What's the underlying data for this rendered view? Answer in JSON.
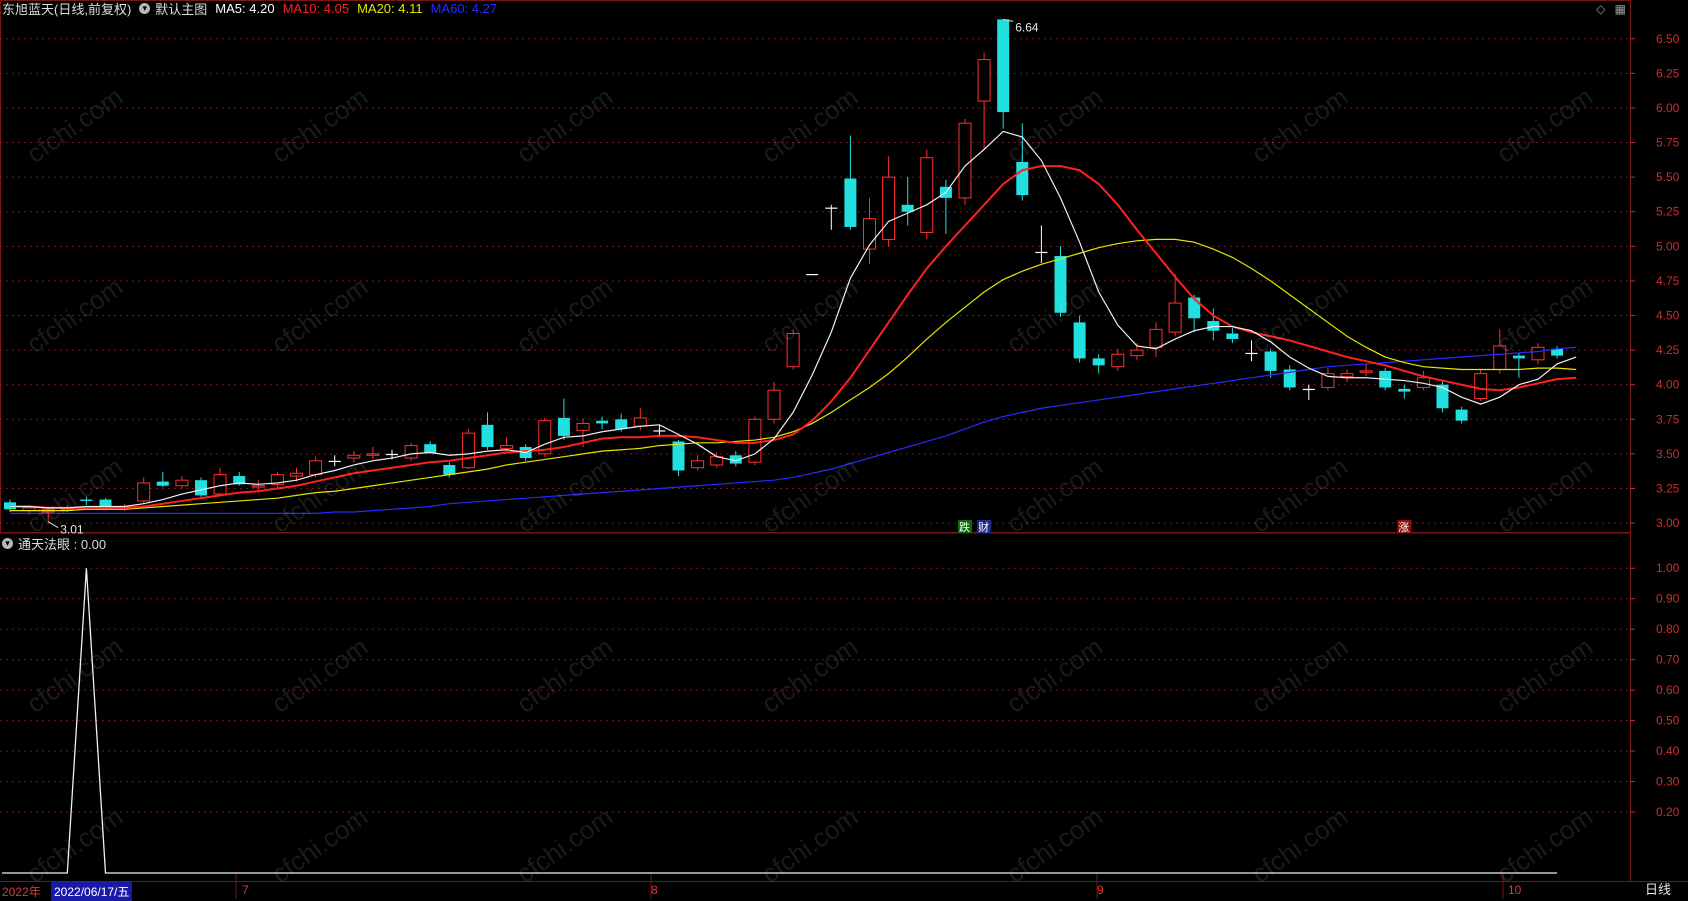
{
  "header": {
    "stock_title": "东旭蓝天(日线,前复权)",
    "template_label": "默认主图",
    "ma": [
      {
        "label": "MA5: 4.20",
        "color": "#ffffff"
      },
      {
        "label": "MA10: 4.05",
        "color": "#ff2020"
      },
      {
        "label": "MA20: 4.11",
        "color": "#e6e600"
      },
      {
        "label": "MA60: 4.27",
        "color": "#2a2aff"
      }
    ]
  },
  "icons": {
    "diamond": "diamond-icon",
    "grid": "grid-icon"
  },
  "indicator": {
    "label": "通天法眼 : 0.00"
  },
  "price_axis_labels": [
    "6.50",
    "6.25",
    "6.00",
    "5.75",
    "5.50",
    "5.25",
    "5.00",
    "4.75",
    "4.50",
    "4.25",
    "4.00",
    "3.75",
    "3.50",
    "3.25",
    "3.00"
  ],
  "indicator_axis_labels": [
    "1.00",
    "0.90",
    "0.80",
    "0.70",
    "0.60",
    "0.50",
    "0.40",
    "0.30",
    "0.20"
  ],
  "annotations": {
    "high": "6.64",
    "low": "3.01",
    "mark_die": "跌",
    "mark_cai": "财",
    "mark_zhang": "涨"
  },
  "date_bar": {
    "year": "2022年",
    "cursor_date": "2022/06/17/五",
    "months": [
      "7",
      "8",
      "9",
      "10"
    ]
  },
  "period_button": "日线",
  "watermark": "cfchi.com",
  "colors": {
    "up": "#ff3030",
    "down": "#20e0e0",
    "grid": "#7a1515",
    "axis_text": "#c83030"
  },
  "chart_data": {
    "type": "candlestick",
    "ylim": [
      2.95,
      6.65
    ],
    "indicator_ylim": [
      0,
      1.05
    ],
    "candles": [
      {
        "o": 3.15,
        "c": 3.1,
        "h": 3.17,
        "l": 3.08
      },
      {
        "o": 3.09,
        "c": 3.11,
        "h": 3.13,
        "l": 3.06
      },
      {
        "o": 3.08,
        "c": 3.1,
        "h": 3.12,
        "l": 3.01
      },
      {
        "o": 3.1,
        "c": 3.11,
        "h": 3.13,
        "l": 3.08
      },
      {
        "o": 3.17,
        "c": 3.16,
        "h": 3.19,
        "l": 3.13
      },
      {
        "o": 3.17,
        "c": 3.11,
        "h": 3.18,
        "l": 3.1
      },
      {
        "o": 3.11,
        "c": 3.12,
        "h": 3.14,
        "l": 3.09
      },
      {
        "o": 3.16,
        "c": 3.29,
        "h": 3.33,
        "l": 3.14
      },
      {
        "o": 3.3,
        "c": 3.27,
        "h": 3.37,
        "l": 3.26
      },
      {
        "o": 3.27,
        "c": 3.31,
        "h": 3.34,
        "l": 3.25
      },
      {
        "o": 3.31,
        "c": 3.2,
        "h": 3.33,
        "l": 3.19
      },
      {
        "o": 3.21,
        "c": 3.35,
        "h": 3.4,
        "l": 3.2
      },
      {
        "o": 3.34,
        "c": 3.28,
        "h": 3.37,
        "l": 3.27
      },
      {
        "o": 3.26,
        "c": 3.27,
        "h": 3.31,
        "l": 3.22
      },
      {
        "o": 3.28,
        "c": 3.35,
        "h": 3.37,
        "l": 3.25
      },
      {
        "o": 3.34,
        "c": 3.36,
        "h": 3.4,
        "l": 3.3
      },
      {
        "o": 3.35,
        "c": 3.45,
        "h": 3.48,
        "l": 3.33
      },
      {
        "o": 3.45,
        "c": 3.45,
        "h": 3.49,
        "l": 3.41
      },
      {
        "o": 3.47,
        "c": 3.49,
        "h": 3.52,
        "l": 3.44
      },
      {
        "o": 3.49,
        "c": 3.5,
        "h": 3.55,
        "l": 3.46
      },
      {
        "o": 3.5,
        "c": 3.5,
        "h": 3.53,
        "l": 3.46
      },
      {
        "o": 3.47,
        "c": 3.56,
        "h": 3.58,
        "l": 3.45
      },
      {
        "o": 3.57,
        "c": 3.51,
        "h": 3.59,
        "l": 3.5
      },
      {
        "o": 3.42,
        "c": 3.35,
        "h": 3.44,
        "l": 3.33
      },
      {
        "o": 3.4,
        "c": 3.65,
        "h": 3.68,
        "l": 3.39
      },
      {
        "o": 3.71,
        "c": 3.55,
        "h": 3.8,
        "l": 3.53
      },
      {
        "o": 3.54,
        "c": 3.56,
        "h": 3.62,
        "l": 3.52
      },
      {
        "o": 3.55,
        "c": 3.47,
        "h": 3.57,
        "l": 3.45
      },
      {
        "o": 3.5,
        "c": 3.74,
        "h": 3.76,
        "l": 3.48
      },
      {
        "o": 3.76,
        "c": 3.63,
        "h": 3.9,
        "l": 3.6
      },
      {
        "o": 3.67,
        "c": 3.72,
        "h": 3.75,
        "l": 3.55
      },
      {
        "o": 3.74,
        "c": 3.72,
        "h": 3.77,
        "l": 3.68
      },
      {
        "o": 3.75,
        "c": 3.68,
        "h": 3.79,
        "l": 3.66
      },
      {
        "o": 3.7,
        "c": 3.76,
        "h": 3.83,
        "l": 3.67
      },
      {
        "o": 3.67,
        "c": 3.67,
        "h": 3.71,
        "l": 3.62
      },
      {
        "o": 3.59,
        "c": 3.38,
        "h": 3.6,
        "l": 3.34
      },
      {
        "o": 3.4,
        "c": 3.45,
        "h": 3.49,
        "l": 3.38
      },
      {
        "o": 3.42,
        "c": 3.48,
        "h": 3.51,
        "l": 3.4
      },
      {
        "o": 3.49,
        "c": 3.43,
        "h": 3.52,
        "l": 3.41
      },
      {
        "o": 3.44,
        "c": 3.75,
        "h": 3.77,
        "l": 3.42
      },
      {
        "o": 3.75,
        "c": 3.96,
        "h": 4.02,
        "l": 3.72
      },
      {
        "o": 4.13,
        "c": 4.37,
        "h": 4.4,
        "l": 4.11
      },
      {
        "o": 4.8,
        "c": 4.8,
        "h": 4.8,
        "l": 4.8
      },
      {
        "o": 5.28,
        "c": 5.28,
        "h": 5.3,
        "l": 5.12
      },
      {
        "o": 5.49,
        "c": 5.14,
        "h": 5.8,
        "l": 5.12
      },
      {
        "o": 4.98,
        "c": 5.2,
        "h": 5.35,
        "l": 4.87
      },
      {
        "o": 5.05,
        "c": 5.5,
        "h": 5.65,
        "l": 5.0
      },
      {
        "o": 5.3,
        "c": 5.25,
        "h": 5.5,
        "l": 5.15
      },
      {
        "o": 5.1,
        "c": 5.64,
        "h": 5.7,
        "l": 5.05
      },
      {
        "o": 5.43,
        "c": 5.35,
        "h": 5.48,
        "l": 5.09
      },
      {
        "o": 5.35,
        "c": 5.89,
        "h": 5.92,
        "l": 5.3
      },
      {
        "o": 6.05,
        "c": 6.35,
        "h": 6.4,
        "l": 5.7
      },
      {
        "o": 6.64,
        "c": 5.97,
        "h": 6.64,
        "l": 5.85
      },
      {
        "o": 5.61,
        "c": 5.37,
        "h": 5.89,
        "l": 5.33
      },
      {
        "o": 4.96,
        "c": 4.96,
        "h": 5.15,
        "l": 4.88
      },
      {
        "o": 4.93,
        "c": 4.52,
        "h": 5.0,
        "l": 4.49
      },
      {
        "o": 4.45,
        "c": 4.19,
        "h": 4.5,
        "l": 4.16
      },
      {
        "o": 4.19,
        "c": 4.14,
        "h": 4.22,
        "l": 4.08
      },
      {
        "o": 4.13,
        "c": 4.22,
        "h": 4.26,
        "l": 4.1
      },
      {
        "o": 4.21,
        "c": 4.25,
        "h": 4.3,
        "l": 4.18
      },
      {
        "o": 4.27,
        "c": 4.4,
        "h": 4.45,
        "l": 4.2
      },
      {
        "o": 4.38,
        "c": 4.59,
        "h": 4.8,
        "l": 4.35
      },
      {
        "o": 4.63,
        "c": 4.48,
        "h": 4.65,
        "l": 4.38
      },
      {
        "o": 4.46,
        "c": 4.39,
        "h": 4.55,
        "l": 4.32
      },
      {
        "o": 4.37,
        "c": 4.33,
        "h": 4.41,
        "l": 4.3
      },
      {
        "o": 4.23,
        "c": 4.23,
        "h": 4.32,
        "l": 4.17
      },
      {
        "o": 4.24,
        "c": 4.1,
        "h": 4.26,
        "l": 4.05
      },
      {
        "o": 4.11,
        "c": 3.98,
        "h": 4.14,
        "l": 3.96
      },
      {
        "o": 3.97,
        "c": 3.97,
        "h": 4.0,
        "l": 3.89
      },
      {
        "o": 3.98,
        "c": 4.08,
        "h": 4.12,
        "l": 3.96
      },
      {
        "o": 4.06,
        "c": 4.08,
        "h": 4.11,
        "l": 4.02
      },
      {
        "o": 4.09,
        "c": 4.1,
        "h": 4.15,
        "l": 4.06
      },
      {
        "o": 4.1,
        "c": 3.98,
        "h": 4.12,
        "l": 3.96
      },
      {
        "o": 3.97,
        "c": 3.95,
        "h": 4.0,
        "l": 3.9
      },
      {
        "o": 3.98,
        "c": 4.05,
        "h": 4.1,
        "l": 3.96
      },
      {
        "o": 4.0,
        "c": 3.83,
        "h": 4.03,
        "l": 3.8
      },
      {
        "o": 3.82,
        "c": 3.74,
        "h": 3.84,
        "l": 3.72
      },
      {
        "o": 3.9,
        "c": 4.08,
        "h": 4.11,
        "l": 3.88
      },
      {
        "o": 4.11,
        "c": 4.28,
        "h": 4.4,
        "l": 4.08
      },
      {
        "o": 4.21,
        "c": 4.19,
        "h": 4.23,
        "l": 4.05
      },
      {
        "o": 4.18,
        "c": 4.27,
        "h": 4.3,
        "l": 4.15
      },
      {
        "o": 4.26,
        "c": 4.21,
        "h": 4.28,
        "l": 4.19
      }
    ],
    "ma5": [
      3.12,
      3.12,
      3.11,
      3.11,
      3.12,
      3.12,
      3.12,
      3.14,
      3.17,
      3.21,
      3.24,
      3.27,
      3.29,
      3.28,
      3.29,
      3.31,
      3.35,
      3.38,
      3.42,
      3.45,
      3.47,
      3.5,
      3.51,
      3.49,
      3.5,
      3.52,
      3.53,
      3.51,
      3.57,
      3.62,
      3.63,
      3.66,
      3.68,
      3.7,
      3.71,
      3.64,
      3.57,
      3.48,
      3.45,
      3.5,
      3.61,
      3.8,
      4.07,
      4.38,
      4.77,
      5.01,
      5.18,
      5.24,
      5.3,
      5.39,
      5.58,
      5.7,
      5.83,
      5.79,
      5.62,
      5.35,
      5.03,
      4.67,
      4.43,
      4.28,
      4.26,
      4.33,
      4.39,
      4.42,
      4.42,
      4.39,
      4.31,
      4.2,
      4.12,
      4.06,
      4.05,
      4.05,
      4.04,
      4.03,
      4.01,
      3.98,
      3.91,
      3.86,
      3.91,
      4.0,
      4.04,
      4.15,
      4.2
    ],
    "ma10": [
      3.12,
      3.12,
      3.11,
      3.11,
      3.11,
      3.11,
      3.11,
      3.12,
      3.14,
      3.16,
      3.18,
      3.2,
      3.22,
      3.23,
      3.25,
      3.27,
      3.3,
      3.33,
      3.36,
      3.38,
      3.4,
      3.42,
      3.44,
      3.45,
      3.47,
      3.49,
      3.51,
      3.52,
      3.53,
      3.55,
      3.58,
      3.61,
      3.62,
      3.62,
      3.63,
      3.63,
      3.62,
      3.6,
      3.58,
      3.58,
      3.6,
      3.64,
      3.74,
      3.88,
      4.05,
      4.25,
      4.45,
      4.65,
      4.84,
      5.0,
      5.15,
      5.3,
      5.45,
      5.55,
      5.58,
      5.58,
      5.55,
      5.45,
      5.3,
      5.12,
      4.95,
      4.78,
      4.62,
      4.5,
      4.42,
      4.38,
      4.35,
      4.32,
      4.28,
      4.24,
      4.2,
      4.17,
      4.14,
      4.1,
      4.06,
      4.03,
      4.0,
      3.97,
      3.96,
      3.98,
      4.01,
      4.04,
      4.05
    ],
    "ma20": [
      3.09,
      3.09,
      3.09,
      3.09,
      3.1,
      3.1,
      3.1,
      3.11,
      3.12,
      3.13,
      3.14,
      3.15,
      3.16,
      3.17,
      3.18,
      3.2,
      3.22,
      3.23,
      3.25,
      3.27,
      3.29,
      3.31,
      3.33,
      3.35,
      3.37,
      3.39,
      3.42,
      3.44,
      3.46,
      3.48,
      3.5,
      3.52,
      3.53,
      3.54,
      3.56,
      3.57,
      3.58,
      3.58,
      3.59,
      3.6,
      3.62,
      3.66,
      3.72,
      3.8,
      3.89,
      3.98,
      4.08,
      4.2,
      4.33,
      4.45,
      4.56,
      4.67,
      4.76,
      4.82,
      4.87,
      4.91,
      4.95,
      4.99,
      5.02,
      5.04,
      5.05,
      5.05,
      5.03,
      4.98,
      4.92,
      4.84,
      4.75,
      4.65,
      4.55,
      4.45,
      4.35,
      4.27,
      4.2,
      4.16,
      4.13,
      4.12,
      4.11,
      4.11,
      4.11,
      4.11,
      4.12,
      4.12,
      4.11
    ],
    "ma60": [
      3.07,
      3.07,
      3.07,
      3.07,
      3.07,
      3.07,
      3.07,
      3.07,
      3.07,
      3.07,
      3.07,
      3.07,
      3.07,
      3.07,
      3.07,
      3.07,
      3.07,
      3.08,
      3.08,
      3.09,
      3.1,
      3.11,
      3.12,
      3.14,
      3.15,
      3.16,
      3.17,
      3.18,
      3.19,
      3.2,
      3.21,
      3.22,
      3.23,
      3.24,
      3.25,
      3.26,
      3.27,
      3.28,
      3.29,
      3.3,
      3.31,
      3.33,
      3.36,
      3.39,
      3.43,
      3.47,
      3.51,
      3.55,
      3.59,
      3.63,
      3.68,
      3.73,
      3.77,
      3.8,
      3.83,
      3.85,
      3.87,
      3.89,
      3.91,
      3.93,
      3.95,
      3.97,
      3.99,
      4.01,
      4.03,
      4.05,
      4.07,
      4.09,
      4.11,
      4.13,
      4.14,
      4.15,
      4.16,
      4.17,
      4.18,
      4.19,
      4.2,
      4.21,
      4.22,
      4.23,
      4.24,
      4.26,
      4.27
    ],
    "indicator_spike": {
      "index": 4,
      "value": 1.0
    }
  }
}
